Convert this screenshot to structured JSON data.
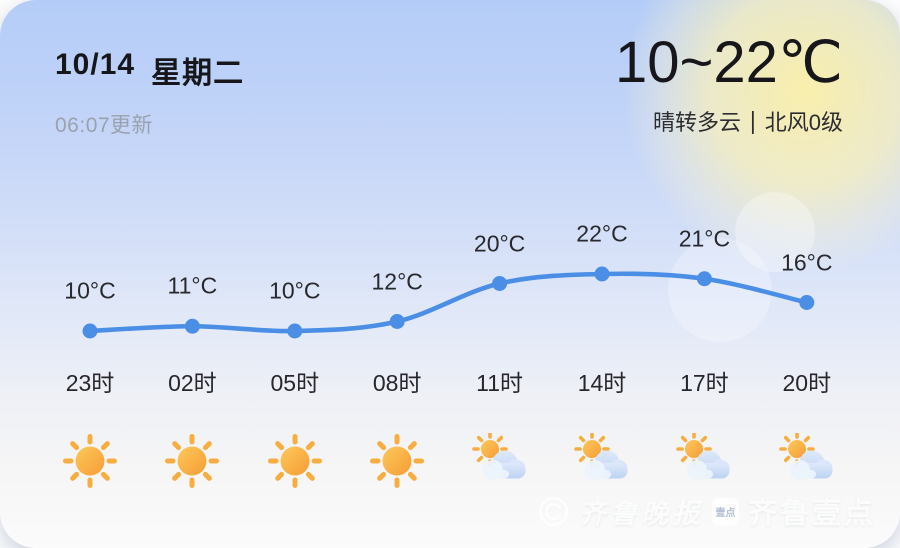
{
  "card": {
    "date": "10/14",
    "weekday": "星期二",
    "updated": "06:07更新",
    "temp_range": "10~22℃",
    "condition": "晴转多云",
    "separator": "|",
    "wind": "北风0级"
  },
  "chart_data": {
    "type": "line",
    "title": "",
    "x": [
      "23时",
      "02时",
      "05时",
      "08时",
      "11时",
      "14时",
      "17时",
      "20时"
    ],
    "series": [
      {
        "name": "hourly-temperature-celsius",
        "values": [
          10,
          11,
          10,
          12,
          20,
          22,
          21,
          16
        ]
      }
    ],
    "point_labels": [
      "10°C",
      "11°C",
      "10°C",
      "12°C",
      "20°C",
      "22°C",
      "21°C",
      "16°C"
    ],
    "icons": [
      "sunny",
      "sunny",
      "sunny",
      "sunny",
      "partly-cloudy",
      "partly-cloudy",
      "partly-cloudy",
      "partly-cloudy"
    ],
    "ylim": [
      8,
      24
    ],
    "grid": false,
    "legend": false,
    "line_color": "#4a8ee6"
  },
  "colors": {
    "accent_blue": "#4a8ee6",
    "sun_light": "#fdc95b",
    "sun_dark": "#f69c35",
    "ray_orange": "#f8ad40",
    "cloud_light": "#dfe9fa",
    "cloud_dark": "#bcd3f2",
    "cloud_front": "#ecf3fc"
  },
  "watermark": {
    "brand_script": "齐鲁晚报",
    "badge_text": "壹点",
    "brand_bold": "齐鲁壹点"
  }
}
